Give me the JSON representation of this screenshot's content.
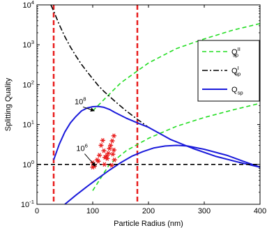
{
  "chart_data": {
    "type": "line",
    "xlabel": "Particle Radius (nm)",
    "ylabel": "Splitting Quality",
    "xlim": [
      0,
      400
    ],
    "ylim_log10": [
      -1,
      4
    ],
    "yscale": "log",
    "x_ticks": [
      0,
      100,
      200,
      300,
      400
    ],
    "x_tick_labels": [
      "0",
      "100",
      "200",
      "300",
      "400"
    ],
    "y_ticks_log10": [
      -1,
      0,
      1,
      2,
      3,
      4
    ],
    "legend": {
      "placement": "right",
      "entries": [
        {
          "base": "Q",
          "sub": "sp",
          "sup": "II",
          "style": "dashed",
          "color": "#22dd22"
        },
        {
          "base": "Q",
          "sub": "sp",
          "sup": "I",
          "style": "dashdot",
          "color": "#000000"
        },
        {
          "base": "Q",
          "sub": "sp",
          "sup": "",
          "style": "solid",
          "color": "#1a1adb"
        }
      ]
    },
    "series": [
      {
        "style": "dashed",
        "color": "#22dd22",
        "group": "1e8",
        "x": [
          100,
          150,
          200,
          250,
          300,
          350,
          400
        ],
        "y": [
          22,
          110,
          350,
          800,
          1400,
          2300,
          3400
        ]
      },
      {
        "style": "dashed",
        "color": "#22dd22",
        "group": "1e6",
        "x": [
          100,
          130,
          160,
          200,
          250,
          300,
          350,
          400
        ],
        "y": [
          0.22,
          1.0,
          2.2,
          4.5,
          9,
          15,
          23,
          34
        ]
      },
      {
        "style": "dashdot",
        "color": "#000000",
        "x": [
          25,
          30,
          40,
          50,
          60,
          70,
          80,
          90,
          100,
          110,
          120,
          140,
          160,
          180,
          200,
          240,
          280,
          320,
          360,
          400
        ],
        "y": [
          10000,
          7000,
          3200,
          1600,
          880,
          520,
          320,
          210,
          140,
          95,
          68,
          38,
          22,
          13.5,
          8.5,
          4.2,
          2.5,
          1.6,
          1.15,
          0.85
        ]
      },
      {
        "style": "solid",
        "color": "#1a1adb",
        "group": "1e8",
        "x": [
          30,
          40,
          50,
          60,
          70,
          80,
          90,
          100,
          110,
          120,
          130,
          140,
          160,
          180,
          200,
          240,
          280,
          320,
          360,
          400
        ],
        "y": [
          1.3,
          3.2,
          6.5,
          11,
          16,
          22,
          26,
          28,
          28.5,
          27,
          24,
          20,
          14.5,
          11,
          8.5,
          4.2,
          2.5,
          1.6,
          1.15,
          0.85
        ]
      },
      {
        "style": "solid",
        "color": "#1a1adb",
        "group": "1e6",
        "x": [
          50,
          70,
          90,
          110,
          130,
          150,
          170,
          190,
          210,
          230,
          250,
          270,
          300,
          340,
          370,
          400
        ],
        "y": [
          0.1,
          0.17,
          0.28,
          0.45,
          0.72,
          1.1,
          1.6,
          2.1,
          2.6,
          2.9,
          3.0,
          2.9,
          2.4,
          1.7,
          1.2,
          0.85
        ]
      },
      {
        "style": "dashed",
        "color": "#000000",
        "x": [
          0,
          400
        ],
        "y": [
          1,
          1
        ]
      }
    ],
    "vertical_lines": {
      "x": [
        30,
        180
      ],
      "color": "#e81c1c",
      "style": "dashed"
    },
    "scatter_points": {
      "color": "#e81c1c",
      "marker": "asterisk",
      "points": [
        [
          100,
          1.1
        ],
        [
          103,
          0.9
        ],
        [
          100,
          0.85
        ],
        [
          110,
          1.2
        ],
        [
          112,
          1.7
        ],
        [
          115,
          3.0
        ],
        [
          118,
          4.0
        ],
        [
          120,
          2.2
        ],
        [
          122,
          1.5
        ],
        [
          126,
          1.4
        ],
        [
          128,
          1.9
        ],
        [
          130,
          2.5
        ],
        [
          132,
          3.0
        ],
        [
          135,
          3.9
        ],
        [
          138,
          2.3
        ],
        [
          138,
          5.2
        ],
        [
          136,
          1.8
        ],
        [
          139,
          1.3
        ],
        [
          134,
          0.95
        ],
        [
          121,
          1.0
        ],
        [
          108,
          1.3
        ],
        [
          125,
          1.65
        ]
      ]
    },
    "annotations": [
      {
        "base": "10",
        "sup": "8",
        "x": 85,
        "y": 30,
        "arrow_to_x": 103,
        "arrow_to_y": 22
      },
      {
        "base": "10",
        "sup": "6",
        "x": 88,
        "y": 2.0,
        "arrow_to_x": 105,
        "arrow_to_y": 0.9
      }
    ],
    "grid": false
  }
}
